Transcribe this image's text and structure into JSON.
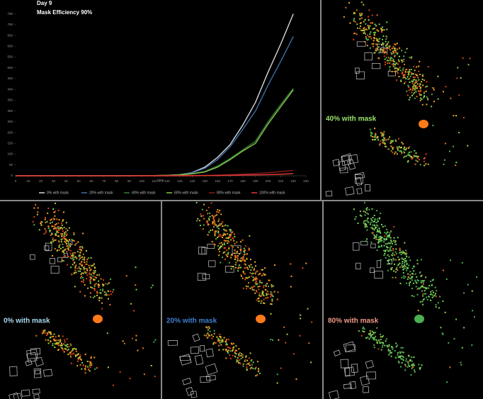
{
  "chart_data": {
    "type": "line",
    "title": "Day 9",
    "subtitle": "Mask Efficiency 90%",
    "x_label": "time",
    "x": [
      0,
      10,
      20,
      30,
      40,
      50,
      60,
      70,
      80,
      90,
      100,
      110,
      120,
      130,
      140,
      150,
      160,
      170,
      180,
      190,
      200,
      210,
      220
    ],
    "xlim": [
      0,
      230
    ],
    "xticks": [
      0,
      10,
      20,
      30,
      40,
      50,
      60,
      70,
      80,
      90,
      100,
      110,
      120,
      130,
      140,
      150,
      160,
      170,
      180,
      190,
      200,
      210,
      220,
      230
    ],
    "ylim": [
      0,
      775
    ],
    "yticks": [
      0,
      50,
      100,
      150,
      200,
      250,
      300,
      350,
      400,
      450,
      500,
      550,
      600,
      650,
      700,
      750
    ],
    "series": [
      {
        "name": "0% with mask",
        "color": "#d8d8d8",
        "values": [
          0,
          0,
          0,
          0,
          0,
          0,
          0,
          0,
          0,
          0,
          1,
          1,
          2,
          5,
          15,
          40,
          85,
          145,
          235,
          340,
          480,
          610,
          750
        ]
      },
      {
        "name": "20% with mask",
        "color": "#3d6fa8",
        "values": [
          0,
          0,
          0,
          0,
          0,
          0,
          0,
          0,
          0,
          0,
          1,
          1,
          2,
          5,
          14,
          35,
          75,
          135,
          215,
          300,
          420,
          530,
          645
        ]
      },
      {
        "name": "40% with mask",
        "color": "#2f7d34",
        "values": [
          0,
          0,
          0,
          0,
          0,
          0,
          0,
          0,
          0,
          0,
          1,
          1,
          2,
          4,
          10,
          20,
          45,
          80,
          120,
          160,
          250,
          330,
          405
        ]
      },
      {
        "name": "60% with mask",
        "color": "#8bc34a",
        "values": [
          0,
          0,
          0,
          0,
          0,
          0,
          0,
          0,
          0,
          0,
          1,
          1,
          2,
          4,
          9,
          18,
          40,
          75,
          115,
          150,
          240,
          320,
          398
        ]
      },
      {
        "name": "80% with mask",
        "color": "#8b1d1d",
        "values": [
          0,
          0,
          0,
          0,
          0,
          0,
          0,
          0,
          0,
          0,
          0,
          0,
          0,
          1,
          1,
          2,
          3,
          5,
          7,
          10,
          14,
          19,
          25
        ]
      },
      {
        "name": "100% with mask",
        "color": "#e53935",
        "values": [
          0,
          0,
          0,
          0,
          0,
          0,
          0,
          0,
          0,
          0,
          0,
          0,
          0,
          0,
          0,
          1,
          1,
          2,
          3,
          4,
          5,
          7,
          10
        ]
      }
    ]
  },
  "panels": [
    {
      "label": "40% with mask",
      "color": "#9be36b"
    },
    {
      "label": "0% with mask",
      "color": "#a9d8f0"
    },
    {
      "label": "20% with mask",
      "color": "#3f7fd0"
    },
    {
      "label": "80% with mask",
      "color": "#f29a8a"
    }
  ]
}
